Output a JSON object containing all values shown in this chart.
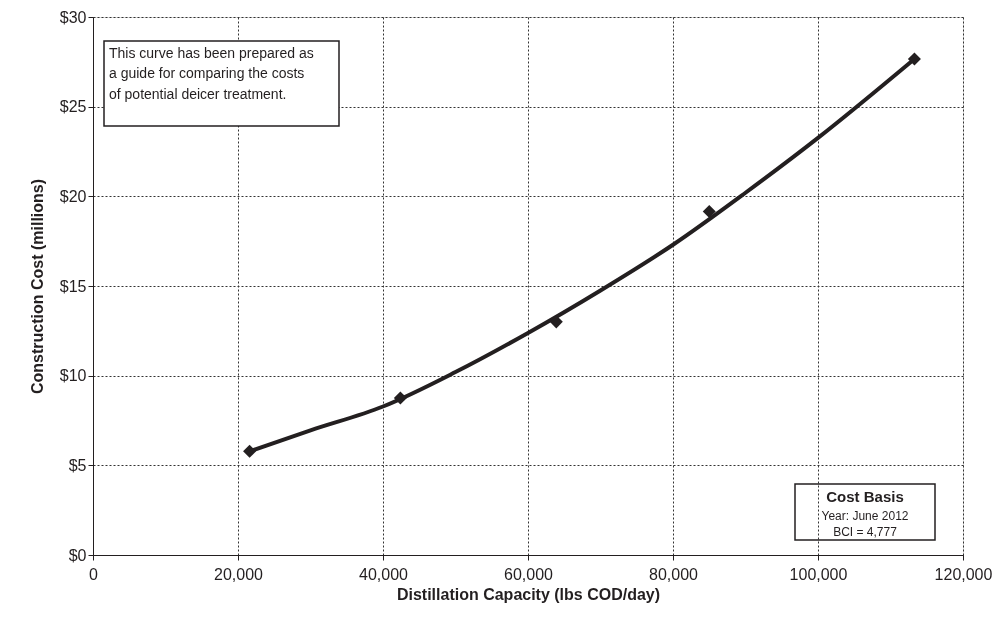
{
  "chart_data": {
    "type": "scatter",
    "xlabel": "Distillation Capacity (lbs COD/day)",
    "ylabel": "Construction Cost (millions)",
    "series": [
      {
        "type": "line",
        "color": "#231f20",
        "x": [
          21600,
          30000,
          40000,
          50000,
          60000,
          70000,
          80000,
          90000,
          100000,
          113300
        ],
        "values": [
          5.78,
          6.95,
          8.28,
          10.2,
          12.38,
          14.75,
          17.3,
          20.2,
          23.26,
          27.66
        ]
      },
      {
        "color": "#231f20",
        "marker": "diamond",
        "x": [
          21600,
          42400,
          63900,
          85000,
          113300
        ],
        "values": [
          5.78,
          8.75,
          13.0,
          19.15,
          27.66
        ]
      }
    ],
    "xlim": [
      0,
      120000
    ],
    "xticks": [
      0,
      {
        "value": 20000,
        "label": "20,000"
      },
      {
        "value": 40000,
        "label": "40,000"
      },
      {
        "value": 60000,
        "label": "60,000"
      },
      {
        "value": 80000,
        "label": "80,000"
      },
      {
        "value": 100000,
        "label": "100,000"
      },
      {
        "value": 120000,
        "label": "120,000"
      }
    ],
    "ylim": [
      0,
      30
    ],
    "yticks": [
      {
        "value": 0,
        "label": "$0"
      },
      {
        "value": 5,
        "label": "$5"
      },
      {
        "value": 10,
        "label": "$10"
      },
      {
        "value": 15,
        "label": "$15"
      },
      {
        "value": 20,
        "label": "$20"
      },
      {
        "value": 25,
        "label": "$25"
      },
      {
        "value": 30,
        "label": "$30"
      }
    ],
    "grid": true,
    "annotations": [
      "This curve has been prepared as\na guide for comparing the costs\nof potential deicer treatment.",
      "Cost Basis\nYear: June 2012\nBCI = 4,777"
    ]
  }
}
